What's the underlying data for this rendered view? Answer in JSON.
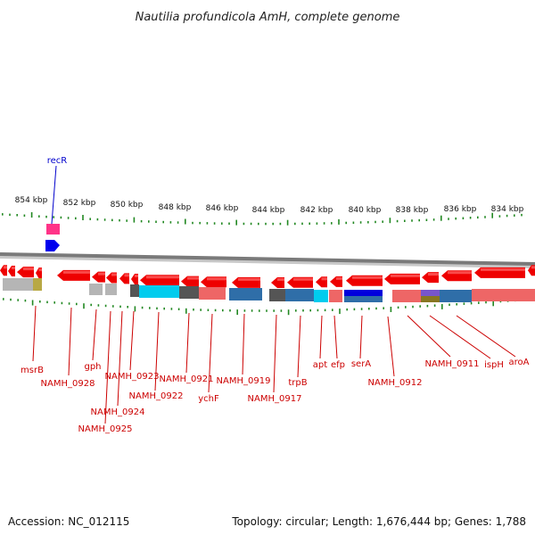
{
  "title": "Nautilia profundicola AmH, complete genome",
  "footer": {
    "accession": "Accession: NC_012115",
    "summary": "Topology: circular; Length: 1,676,444 bp; Genes: 1,788"
  },
  "kbp_labels": [
    "854 kbp",
    "852 kbp",
    "850 kbp",
    "848 kbp",
    "846 kbp",
    "844 kbp",
    "842 kbp",
    "840 kbp",
    "838 kbp",
    "836 kbp",
    "834 kbp"
  ],
  "genes": [
    {
      "name": "recR",
      "color": "blue"
    },
    {
      "name": "msrB",
      "color": "red"
    },
    {
      "name": "NAMH_0928",
      "color": "red"
    },
    {
      "name": "gph",
      "color": "red"
    },
    {
      "name": "NAMH_0923",
      "color": "red"
    },
    {
      "name": "NAMH_0924",
      "color": "red"
    },
    {
      "name": "NAMH_0925",
      "color": "red"
    },
    {
      "name": "NAMH_0922",
      "color": "red"
    },
    {
      "name": "NAMH_0921",
      "color": "red"
    },
    {
      "name": "ychF",
      "color": "red"
    },
    {
      "name": "NAMH_0919",
      "color": "red"
    },
    {
      "name": "NAMH_0917",
      "color": "red"
    },
    {
      "name": "trpB",
      "color": "red"
    },
    {
      "name": "apt",
      "color": "red"
    },
    {
      "name": "efp",
      "color": "red"
    },
    {
      "name": "serA",
      "color": "red"
    },
    {
      "name": "NAMH_0912",
      "color": "red"
    },
    {
      "name": "NAMH_0911",
      "color": "red"
    },
    {
      "name": "ispH",
      "color": "red"
    },
    {
      "name": "aroA",
      "color": "red"
    }
  ],
  "colors": {
    "forward_gene": "#ee0000",
    "reverse_top": "#ff3355",
    "backbone": "#888888",
    "tick": "#228822",
    "label_red": "#cc0000",
    "label_blue": "#0000cc"
  }
}
